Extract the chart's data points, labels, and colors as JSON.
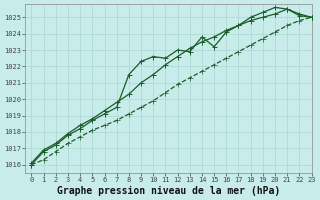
{
  "title": "Graphe pression niveau de la mer (hPa)",
  "bg_color": "#c8ecea",
  "grid_color": "#b0d8d4",
  "line_color": "#1a5c2a",
  "xlim": [
    -0.5,
    23
  ],
  "ylim": [
    1015.5,
    1025.8
  ],
  "xticks": [
    0,
    1,
    2,
    3,
    4,
    5,
    6,
    7,
    8,
    9,
    10,
    11,
    12,
    13,
    14,
    15,
    16,
    17,
    18,
    19,
    20,
    21,
    22,
    23
  ],
  "yticks": [
    1016,
    1017,
    1018,
    1019,
    1020,
    1021,
    1022,
    1023,
    1024,
    1025
  ],
  "series1": [
    1016.0,
    1016.8,
    1017.2,
    1017.8,
    1018.2,
    1018.7,
    1019.1,
    1019.5,
    1021.5,
    1022.3,
    1022.6,
    1022.5,
    1023.0,
    1022.9,
    1023.8,
    1023.2,
    1024.1,
    1024.5,
    1025.0,
    1025.3,
    1025.6,
    1025.5,
    1025.1,
    1025.0
  ],
  "series2": [
    1016.1,
    1016.9,
    1017.3,
    1017.9,
    1018.4,
    1018.8,
    1019.3,
    1019.8,
    1020.3,
    1021.0,
    1021.5,
    1022.1,
    1022.6,
    1023.1,
    1023.5,
    1023.8,
    1024.2,
    1024.5,
    1024.8,
    1025.0,
    1025.2,
    1025.5,
    1025.2,
    1025.0
  ],
  "series3": [
    1016.0,
    1016.3,
    1016.8,
    1017.3,
    1017.7,
    1018.1,
    1018.4,
    1018.7,
    1019.1,
    1019.5,
    1019.9,
    1020.4,
    1020.9,
    1021.3,
    1021.7,
    1022.1,
    1022.5,
    1022.9,
    1023.3,
    1023.7,
    1024.1,
    1024.5,
    1024.8,
    1025.0
  ],
  "title_fontsize": 7,
  "tick_fontsize": 5,
  "linewidth": 0.9,
  "markersize": 2.0
}
